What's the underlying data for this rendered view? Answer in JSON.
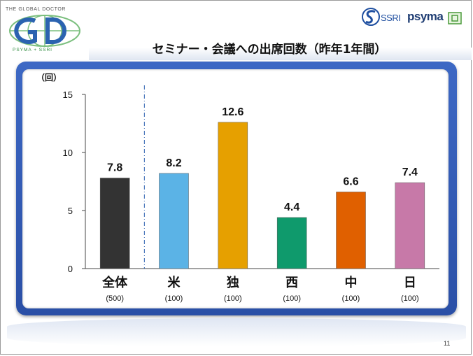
{
  "header": {
    "title": "セミナー・会議への出席回数（昨年1年間）",
    "logo_left": {
      "tagline": "THE GLOBAL DOCTOR",
      "subline": "PSYMA + SSRI"
    },
    "logo_right": {
      "ssri": "SSRI",
      "psyma": "psyma"
    }
  },
  "chart_data": {
    "type": "bar",
    "categories": [
      "全体",
      "米",
      "独",
      "西",
      "中",
      "日"
    ],
    "sample_sizes": [
      "(500)",
      "(100)",
      "(100)",
      "(100)",
      "(100)",
      "(100)"
    ],
    "values": [
      7.8,
      8.2,
      12.6,
      4.4,
      6.6,
      7.4
    ],
    "value_labels": [
      "7.8",
      "8.2",
      "12.6",
      "4.4",
      "6.6",
      "7.4"
    ],
    "colors": [
      "#333333",
      "#5bb3e6",
      "#e6a000",
      "#0f9a6c",
      "#e06000",
      "#c779a8"
    ],
    "ylabel": "（回）",
    "ylim": [
      0,
      15
    ],
    "yticks": [
      "0",
      "5",
      "10",
      "15"
    ],
    "ytick_values": [
      0,
      5,
      10,
      15
    ],
    "divider_after_category": "全体"
  },
  "footer": {
    "page_number": "11"
  }
}
